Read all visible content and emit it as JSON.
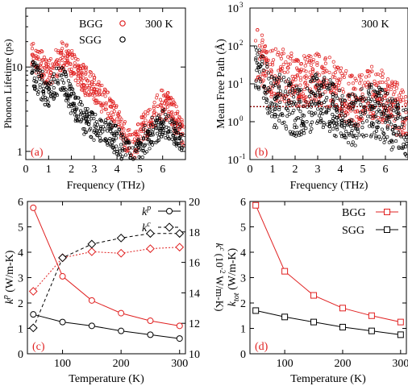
{
  "chart_data": [
    {
      "id": "a",
      "type": "scatter",
      "panel_label": "(a)",
      "annotation": "300 K",
      "xlabel": "Frequency (THz)",
      "ylabel": "Phonon Lifetime (ps)",
      "xlim": [
        0,
        7
      ],
      "ylim": [
        0.8,
        50
      ],
      "yscale": "log",
      "xticks": [
        "0",
        "1",
        "2",
        "3",
        "4",
        "5",
        "6"
      ],
      "yticks": [
        "1",
        "10"
      ],
      "legend": "top-left",
      "colors": {
        "BGG": "#e02020",
        "SGG": "#000000"
      },
      "series": [
        {
          "name": "BGG",
          "envelope": [
            [
              0.3,
              20
            ],
            [
              0.7,
              16
            ],
            [
              1.0,
              12
            ],
            [
              1.3,
              16
            ],
            [
              1.6,
              20
            ],
            [
              2.0,
              17
            ],
            [
              2.4,
              12
            ],
            [
              2.8,
              9
            ],
            [
              3.2,
              7
            ],
            [
              3.6,
              5
            ],
            [
              4.0,
              3.5
            ],
            [
              4.4,
              2.2
            ],
            [
              4.7,
              1.6
            ],
            [
              5.0,
              2.4
            ],
            [
              5.3,
              3.2
            ],
            [
              5.7,
              4.5
            ],
            [
              6.0,
              5.5
            ],
            [
              6.3,
              5.0
            ],
            [
              6.6,
              3.5
            ],
            [
              6.9,
              2.5
            ]
          ]
        },
        {
          "name": "SGG",
          "envelope": [
            [
              0.3,
              13
            ],
            [
              0.7,
              9
            ],
            [
              1.0,
              7
            ],
            [
              1.3,
              10
            ],
            [
              1.6,
              11
            ],
            [
              2.0,
              6
            ],
            [
              2.4,
              4
            ],
            [
              2.8,
              3
            ],
            [
              3.2,
              2.7
            ],
            [
              3.6,
              2.5
            ],
            [
              4.0,
              2.0
            ],
            [
              4.4,
              1.5
            ],
            [
              4.7,
              1.1
            ],
            [
              5.0,
              1.6
            ],
            [
              5.3,
              2.2
            ],
            [
              5.7,
              2.8
            ],
            [
              6.0,
              3.2
            ],
            [
              6.3,
              3.0
            ],
            [
              6.6,
              2.5
            ],
            [
              6.9,
              2.2
            ]
          ]
        }
      ]
    },
    {
      "id": "b",
      "type": "scatter",
      "panel_label": "(b)",
      "annotation": "300 K",
      "xlabel": "Frequency (THz)",
      "ylabel": "Mean Free Path (Å)",
      "xlim": [
        0,
        7
      ],
      "ylim": [
        0.1,
        1000
      ],
      "yscale": "log",
      "xticks": [
        "0",
        "1",
        "2",
        "3",
        "4",
        "5",
        "6"
      ],
      "yticks": [
        "10",
        "10",
        "10",
        "10",
        "10"
      ],
      "ytick_exponents": [
        "-1",
        "0",
        "1",
        "2",
        "3"
      ],
      "reference_line": {
        "y": 2.5,
        "style": "dotted",
        "color": "#8b0000"
      },
      "colors": {
        "BGG": "#e02020",
        "SGG": "#000000"
      },
      "series": [
        {
          "name": "BGG",
          "envelope": [
            [
              0.3,
              300
            ],
            [
              0.7,
              150
            ],
            [
              1.0,
              80
            ],
            [
              1.4,
              90
            ],
            [
              1.8,
              70
            ],
            [
              2.2,
              55
            ],
            [
              2.6,
              60
            ],
            [
              3.0,
              70
            ],
            [
              3.4,
              60
            ],
            [
              3.8,
              40
            ],
            [
              4.2,
              25
            ],
            [
              4.6,
              15
            ],
            [
              5.0,
              25
            ],
            [
              5.4,
              30
            ],
            [
              5.8,
              25
            ],
            [
              6.2,
              15
            ],
            [
              6.6,
              10
            ],
            [
              6.9,
              8
            ]
          ]
        },
        {
          "name": "SGG",
          "envelope": [
            [
              0.3,
              150
            ],
            [
              0.7,
              60
            ],
            [
              1.0,
              15
            ],
            [
              1.4,
              20
            ],
            [
              1.8,
              12
            ],
            [
              2.2,
              8
            ],
            [
              2.6,
              12
            ],
            [
              3.0,
              20
            ],
            [
              3.4,
              15
            ],
            [
              3.8,
              10
            ],
            [
              4.2,
              8
            ],
            [
              4.6,
              5
            ],
            [
              5.0,
              8
            ],
            [
              5.4,
              10
            ],
            [
              5.8,
              8
            ],
            [
              6.2,
              5
            ],
            [
              6.6,
              3
            ],
            [
              6.9,
              2.5
            ]
          ]
        }
      ]
    },
    {
      "id": "c",
      "type": "line",
      "panel_label": "(c)",
      "xlabel": "Temperature (K)",
      "ylabel_left": "k",
      "ylabel_left_sup": "p",
      "ylabel_left_unit": "(W/m-K)",
      "ylabel_right": "k",
      "ylabel_right_sup": "c",
      "ylabel_right_unit": "(10",
      "ylabel_right_unit2": "-2",
      "ylabel_right_unit3": " W/m-K)",
      "xlim": [
        40,
        310
      ],
      "ylim_left": [
        0,
        6
      ],
      "ylim_right": [
        10,
        20
      ],
      "xticks": [
        "100",
        "200",
        "300"
      ],
      "yticks_left": [
        "0",
        "1",
        "2",
        "3",
        "4",
        "5",
        "6"
      ],
      "yticks_right": [
        "10",
        "12",
        "14",
        "16",
        "18",
        "20"
      ],
      "x": [
        50,
        100,
        150,
        200,
        250,
        300
      ],
      "legend_entries": [
        {
          "label": "k",
          "sup": "p",
          "marker": "circle",
          "dash": false
        },
        {
          "label": "k",
          "sup": "c",
          "marker": "diamond",
          "dash": true
        }
      ],
      "colors": {
        "BGG": "#e02020",
        "SGG": "#000000"
      },
      "series": [
        {
          "name": "BGG",
          "kind": "kp",
          "axis": "left",
          "marker": "circle",
          "values": [
            5.75,
            3.05,
            2.1,
            1.6,
            1.3,
            1.1
          ]
        },
        {
          "name": "SGG",
          "kind": "kp",
          "axis": "left",
          "marker": "circle",
          "values": [
            1.55,
            1.25,
            1.1,
            0.9,
            0.75,
            0.6
          ]
        },
        {
          "name": "BGG",
          "kind": "kc",
          "axis": "right",
          "marker": "diamond",
          "values": [
            14.1,
            16.3,
            16.7,
            16.6,
            16.9,
            17.0
          ]
        },
        {
          "name": "SGG",
          "kind": "kc",
          "axis": "right",
          "marker": "diamond",
          "values": [
            11.7,
            16.3,
            17.2,
            17.6,
            17.9,
            17.9
          ]
        }
      ]
    },
    {
      "id": "d",
      "type": "line",
      "panel_label": "(d)",
      "xlabel": "Temperature (K)",
      "ylabel": "k",
      "ylabel_sub": "tot",
      "ylabel_unit": "(W/m-K)",
      "xlim": [
        40,
        310
      ],
      "ylim": [
        0,
        6
      ],
      "xticks": [
        "100",
        "200",
        "300"
      ],
      "yticks": [
        "0",
        "1",
        "2",
        "3",
        "4",
        "5",
        "6"
      ],
      "x": [
        50,
        100,
        150,
        200,
        250,
        300
      ],
      "legend": "top-right",
      "colors": {
        "BGG": "#e02020",
        "SGG": "#000000"
      },
      "series": [
        {
          "name": "BGG",
          "marker": "square",
          "values": [
            5.85,
            3.25,
            2.3,
            1.8,
            1.5,
            1.25
          ]
        },
        {
          "name": "SGG",
          "marker": "square",
          "values": [
            1.7,
            1.45,
            1.25,
            1.05,
            0.9,
            0.75
          ]
        }
      ]
    }
  ]
}
